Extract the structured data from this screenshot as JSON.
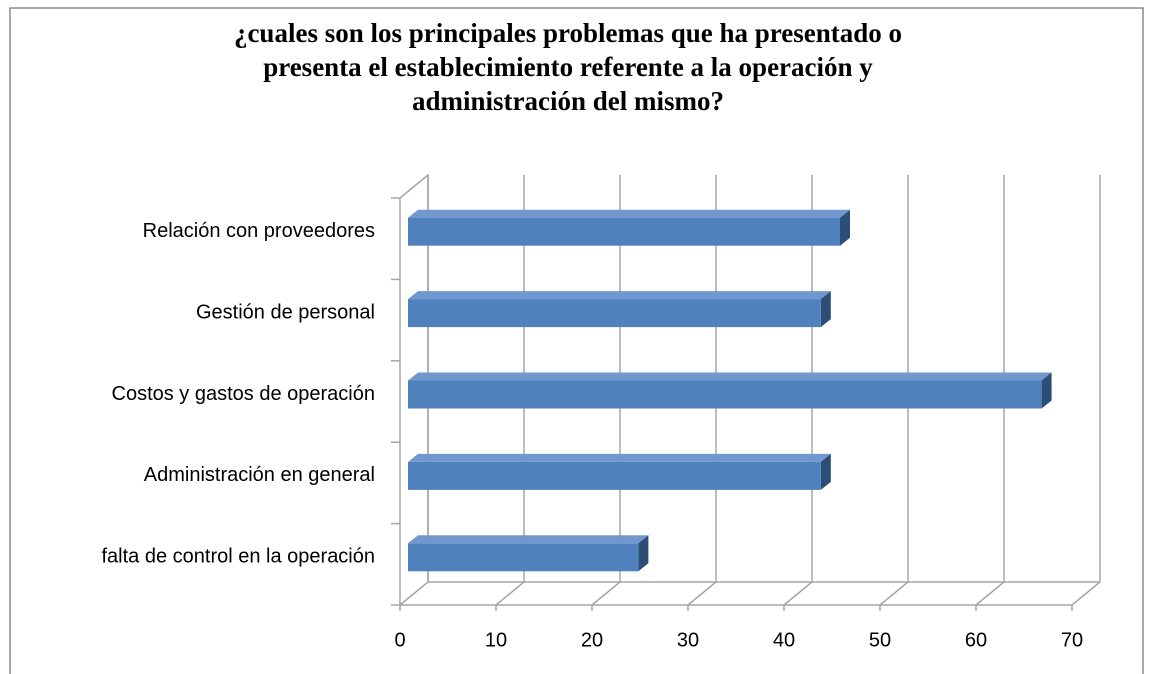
{
  "chart_data": {
    "type": "bar3d-horizontal",
    "title": [
      "¿cuales son los principales problemas que ha presentado o",
      "presenta el establecimiento referente a la operación y",
      "administración del mismo?"
    ],
    "categories": [
      "Relación con proveedores",
      "Gestión de personal",
      "Costos y gastos de operación",
      "Administración en general",
      "falta de control en la operación"
    ],
    "values": [
      45,
      43,
      66,
      43,
      24
    ],
    "color": "#4f81bd",
    "xlim": [
      0,
      70
    ],
    "xticks": [
      0,
      10,
      20,
      30,
      40,
      50,
      60,
      70
    ],
    "grid": true
  }
}
